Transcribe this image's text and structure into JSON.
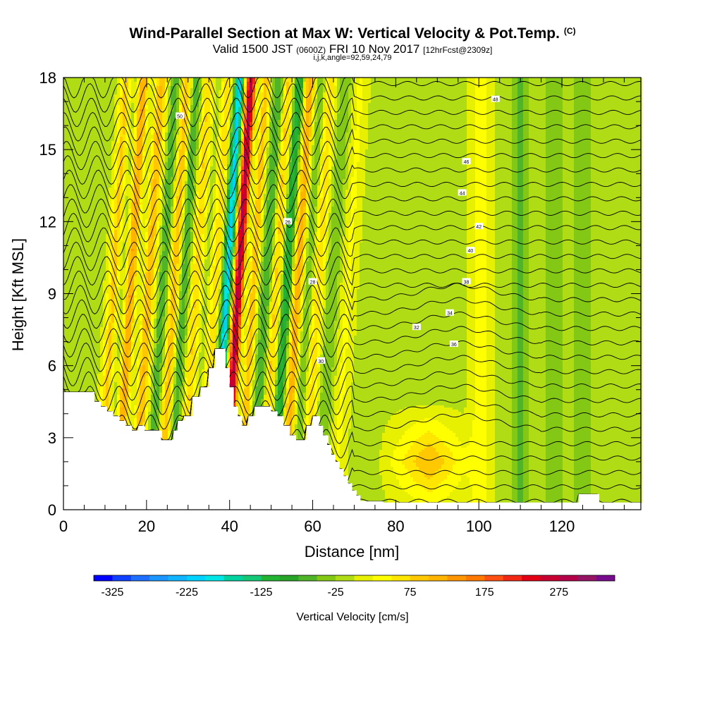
{
  "header": {
    "title": "Wind-Parallel Section at Max W: Vertical Velocity & Pot.Temp.",
    "copyright_mark": "(C)",
    "valid_prefix": "Valid 1500 JST",
    "valid_utc": "(0600Z)",
    "valid_date": "FRI 10 Nov 2017",
    "forecast_info": "[12hrFcst@2309z]",
    "section_params": "i,j,k,angle=92,59,24,79"
  },
  "chart_data": {
    "type": "heatmap",
    "title": "Wind-Parallel Section at Max W: Vertical Velocity & Pot.Temp.",
    "xlabel": "Distance [nm]",
    "ylabel": "Height [Kft MSL]",
    "xlim": [
      0,
      139
    ],
    "ylim": [
      0,
      18
    ],
    "x_ticks": [
      "0",
      "20",
      "40",
      "60",
      "80",
      "100",
      "120"
    ],
    "x_tick_values": [
      0,
      20,
      40,
      60,
      80,
      100,
      120
    ],
    "y_ticks": [
      "0",
      "3",
      "6",
      "9",
      "12",
      "15",
      "18"
    ],
    "y_tick_values": [
      0,
      3,
      6,
      9,
      12,
      15,
      18
    ],
    "colorbar": {
      "label": "Vertical Velocity [cm/s]",
      "min": -350,
      "max": 350,
      "step": 25,
      "tick_labels": [
        "-325",
        "-225",
        "-125",
        "-25",
        "75",
        "175",
        "275"
      ],
      "tick_values": [
        -325,
        -225,
        -125,
        -25,
        75,
        175,
        275
      ],
      "colors": [
        "#0000ff",
        "#1040ff",
        "#1e6eff",
        "#1c96ff",
        "#10b4ff",
        "#00d2ff",
        "#00e6e6",
        "#00d2a0",
        "#14c878",
        "#22b432",
        "#28a528",
        "#50b428",
        "#82c814",
        "#afdc14",
        "#e6f000",
        "#ffff00",
        "#ffe600",
        "#ffc800",
        "#ffb400",
        "#ff9600",
        "#ff7800",
        "#ff5014",
        "#f02814",
        "#e10014",
        "#c80032",
        "#b4004b",
        "#961464",
        "#780a8c"
      ]
    },
    "background_velocity_cm_s": -10,
    "updraft_bands": [
      {
        "x": 11.5,
        "width": 1.2,
        "w": 95
      },
      {
        "x": 15.5,
        "width": 1.3,
        "w": 150
      },
      {
        "x": 19.5,
        "width": 1.3,
        "w": 115
      },
      {
        "x": 26,
        "width": 1.5,
        "w": 165
      },
      {
        "x": 31.5,
        "width": 1.5,
        "w": 90
      },
      {
        "x": 35.5,
        "width": 1.3,
        "w": 80
      },
      {
        "x": 41.5,
        "width": 1.2,
        "w": 310
      },
      {
        "x": 44.5,
        "width": 1.0,
        "w": 140
      },
      {
        "x": 50.5,
        "width": 1.3,
        "w": 115
      },
      {
        "x": 55.5,
        "width": 1.3,
        "w": 140
      },
      {
        "x": 60.5,
        "width": 1.3,
        "w": 80
      },
      {
        "x": 67.5,
        "width": 1.6,
        "w": 40
      },
      {
        "x": 100.5,
        "width": 1.8,
        "w": 45
      }
    ],
    "downdraft_bands": [
      {
        "x": 13.5,
        "width": 1.0,
        "w": -60
      },
      {
        "x": 17.5,
        "width": 1.0,
        "w": -70
      },
      {
        "x": 24,
        "width": 1.2,
        "w": -95
      },
      {
        "x": 27.8,
        "width": 1.2,
        "w": -125
      },
      {
        "x": 33.5,
        "width": 1.1,
        "w": -60
      },
      {
        "x": 38.8,
        "width": 1.0,
        "w": -205
      },
      {
        "x": 43.2,
        "width": 0.9,
        "w": -145
      },
      {
        "x": 48.5,
        "width": 1.1,
        "w": -85
      },
      {
        "x": 53,
        "width": 1.2,
        "w": -135
      },
      {
        "x": 58,
        "width": 1.2,
        "w": -60
      },
      {
        "x": 64,
        "width": 1.5,
        "w": -40
      },
      {
        "x": 110,
        "width": 1.5,
        "w": -45
      },
      {
        "x": 118,
        "width": 1.5,
        "w": -40
      },
      {
        "x": 125,
        "width": 1.5,
        "w": -40
      }
    ],
    "low_level_updraft": {
      "x_center": 88,
      "x_halfwidth": 13,
      "height_kft": 2.0,
      "w": 75
    },
    "terrain_kft": [
      [
        0,
        4.9
      ],
      [
        7.5,
        4.9
      ],
      [
        7.5,
        4.5
      ],
      [
        9,
        4.5
      ],
      [
        9,
        4.3
      ],
      [
        10.5,
        4.3
      ],
      [
        10.5,
        4.1
      ],
      [
        12,
        4.1
      ],
      [
        12,
        3.9
      ],
      [
        13.5,
        3.9
      ],
      [
        13.5,
        3.7
      ],
      [
        15,
        3.7
      ],
      [
        15,
        3.5
      ],
      [
        16.5,
        3.5
      ],
      [
        16.5,
        3.3
      ],
      [
        18,
        3.3
      ],
      [
        18,
        3.5
      ],
      [
        19.5,
        3.5
      ],
      [
        19.5,
        3.3
      ],
      [
        23.5,
        3.3
      ],
      [
        23.5,
        2.9
      ],
      [
        26.5,
        2.9
      ],
      [
        26.5,
        3.3
      ],
      [
        27.5,
        3.3
      ],
      [
        27.5,
        3.7
      ],
      [
        29,
        3.7
      ],
      [
        29,
        3.9
      ],
      [
        31,
        3.9
      ],
      [
        31,
        4.7
      ],
      [
        33,
        4.7
      ],
      [
        33,
        5.1
      ],
      [
        35,
        5.1
      ],
      [
        35,
        5.9
      ],
      [
        36.5,
        5.9
      ],
      [
        36.5,
        6.7
      ],
      [
        39,
        6.7
      ],
      [
        39,
        5.9
      ],
      [
        40,
        5.9
      ],
      [
        40,
        5.1
      ],
      [
        41,
        5.1
      ],
      [
        41,
        4.3
      ],
      [
        42,
        4.3
      ],
      [
        42,
        3.9
      ],
      [
        43,
        3.9
      ],
      [
        43,
        3.5
      ],
      [
        44.5,
        3.5
      ],
      [
        44.5,
        3.9
      ],
      [
        46,
        3.9
      ],
      [
        46,
        4.3
      ],
      [
        50,
        4.3
      ],
      [
        50,
        4.1
      ],
      [
        51.5,
        4.1
      ],
      [
        51.5,
        3.9
      ],
      [
        53,
        3.9
      ],
      [
        53,
        3.5
      ],
      [
        54.5,
        3.5
      ],
      [
        54.5,
        3.1
      ],
      [
        56,
        3.1
      ],
      [
        56,
        2.9
      ],
      [
        58.5,
        2.9
      ],
      [
        58.5,
        3.5
      ],
      [
        60,
        3.5
      ],
      [
        60,
        3.9
      ],
      [
        61.5,
        3.9
      ],
      [
        61.5,
        3.5
      ],
      [
        62.5,
        3.5
      ],
      [
        62.5,
        3.1
      ],
      [
        63.5,
        3.1
      ],
      [
        63.5,
        2.7
      ],
      [
        64.5,
        2.7
      ],
      [
        64.5,
        2.3
      ],
      [
        65.5,
        2.3
      ],
      [
        65.5,
        2.0
      ],
      [
        66.5,
        2.0
      ],
      [
        66.5,
        1.7
      ],
      [
        67.5,
        1.7
      ],
      [
        67.5,
        1.4
      ],
      [
        68.5,
        1.4
      ],
      [
        68.5,
        1.1
      ],
      [
        69.5,
        1.1
      ],
      [
        69.5,
        0.8
      ],
      [
        70.5,
        0.8
      ],
      [
        70.5,
        0.6
      ],
      [
        71.5,
        0.6
      ],
      [
        71.5,
        0.35
      ],
      [
        77,
        0.35
      ],
      [
        77,
        0.3
      ],
      [
        124,
        0.3
      ],
      [
        124,
        0.65
      ],
      [
        129,
        0.65
      ],
      [
        129,
        0.3
      ],
      [
        139,
        0.3
      ]
    ],
    "theta_contours": {
      "count": 30,
      "annotated_values": [
        "26",
        "28",
        "30",
        "32",
        "34",
        "36",
        "38",
        "40",
        "42",
        "44",
        "46",
        "48",
        "50"
      ]
    }
  }
}
